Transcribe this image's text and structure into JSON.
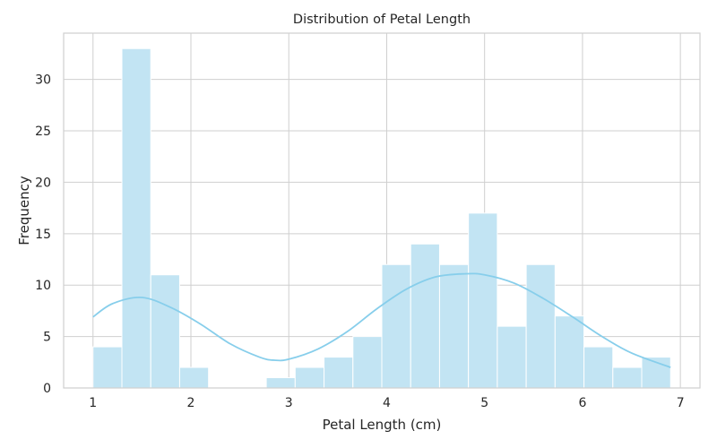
{
  "chart_data": {
    "type": "bar",
    "title": "Distribution of Petal Length",
    "xlabel": "Petal Length (cm)",
    "ylabel": "Frequency",
    "xlim": [
      0.7,
      7.2
    ],
    "ylim": [
      0,
      34.5
    ],
    "xticks": [
      1,
      2,
      3,
      4,
      5,
      6,
      7
    ],
    "yticks": [
      0,
      5,
      10,
      15,
      20,
      25,
      30
    ],
    "grid": true,
    "bin_start": 1.0,
    "bin_width": 0.295,
    "counts": [
      4,
      33,
      11,
      2,
      0,
      0,
      1,
      2,
      3,
      5,
      12,
      14,
      12,
      17,
      6,
      12,
      7,
      4,
      2,
      3
    ],
    "kde": {
      "x": [
        1.0,
        1.2,
        1.5,
        1.8,
        2.1,
        2.4,
        2.7,
        2.85,
        3.0,
        3.3,
        3.6,
        3.9,
        4.2,
        4.5,
        4.8,
        5.0,
        5.3,
        5.6,
        5.9,
        6.2,
        6.5,
        6.9
      ],
      "y": [
        6.9,
        8.2,
        8.8,
        7.8,
        6.2,
        4.3,
        3.0,
        2.7,
        2.8,
        3.8,
        5.5,
        7.7,
        9.6,
        10.8,
        11.1,
        11.0,
        10.2,
        8.7,
        6.9,
        5.0,
        3.4,
        2.0
      ]
    },
    "colors": {
      "bar": "#c2e4f3",
      "kde": "#87ceeb"
    }
  }
}
